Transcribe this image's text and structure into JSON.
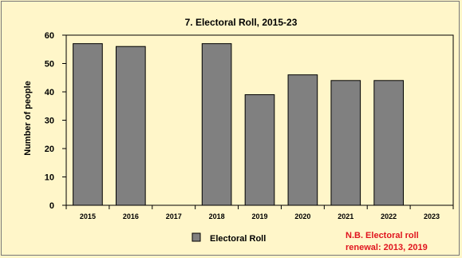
{
  "chart_data": {
    "type": "bar",
    "title": "7. Electoral Roll, 2015-23",
    "xlabel": "",
    "ylabel": "Number of people",
    "categories": [
      "2015",
      "2016",
      "2017",
      "2018",
      "2019",
      "2020",
      "2021",
      "2022",
      "2023"
    ],
    "series": [
      {
        "name": "Electoral Roll",
        "values": [
          57,
          56,
          null,
          57,
          39,
          46,
          44,
          44,
          null
        ]
      }
    ],
    "ylim": [
      0,
      60
    ],
    "yticks": [
      0,
      10,
      20,
      30,
      40,
      50,
      60
    ],
    "grid": false,
    "legend": "bottom-center",
    "bar_color": "#808080",
    "annotation": {
      "lines": [
        "N.B. Electoral roll",
        "renewal: 2013, 2019"
      ],
      "color": "#e0141e"
    }
  }
}
